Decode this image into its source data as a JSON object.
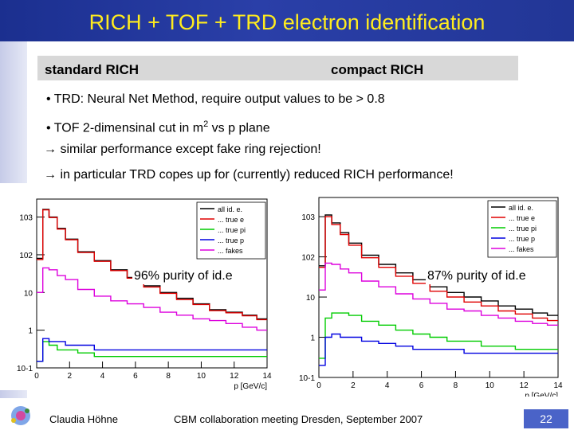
{
  "slide": {
    "title": "RICH + TOF + TRD electron identification",
    "labels": {
      "left": "standard RICH",
      "right": "compact RICH"
    },
    "bullets": [
      "TRD: Neural Net Method, require output values to be > 0.8",
      "TOF 2-dimensinal cut in m",
      "2",
      " vs p plane"
    ],
    "conclusions": [
      "→ similar performance except fake ring rejection!",
      "→ in particular TRD copes up for (currently) reduced RICH performance!"
    ],
    "bullet_symbol": "•"
  },
  "footer": {
    "author": "Claudia Höhne",
    "meeting": "CBM collaboration meeting Dresden, September 2007",
    "page": "22"
  },
  "colors": {
    "title_text": "#ffec1e",
    "title_bg": "#2236a0",
    "all": "#000000",
    "true_e": "#e00000",
    "true_pi": "#00cc00",
    "true_p": "#0000e0",
    "fakes": "#dd00dd",
    "page_box": "#4a63c8"
  },
  "chart_data": [
    {
      "type": "line",
      "name": "standard RICH",
      "annotation": "96% purity of id.e",
      "xlabel": "p [GeV/c]",
      "ylabel": "",
      "xlim": [
        0,
        14
      ],
      "ylim": [
        0.1,
        3000
      ],
      "yscale": "log",
      "x_ticks": [
        "0",
        "2",
        "4",
        "6",
        "8",
        "10",
        "12",
        "14"
      ],
      "y_ticks": [
        {
          "v": 0.1,
          "t": "10-1"
        },
        {
          "v": 1,
          "t": "1"
        },
        {
          "v": 10,
          "t": "10"
        },
        {
          "v": 100,
          "t": "102"
        },
        {
          "v": 1000,
          "t": "103"
        }
      ],
      "legend": [
        "all id. e.",
        "... true e",
        "... true pi",
        "... true p",
        "... fakes"
      ],
      "x": [
        0.25,
        0.5,
        1,
        1.5,
        2,
        3,
        4,
        5,
        6,
        7,
        8,
        9,
        10,
        11,
        12,
        13,
        13.75
      ],
      "series": [
        {
          "name": "all id. e.",
          "values": [
            80,
            1600,
            1000,
            500,
            260,
            120,
            70,
            40,
            25,
            15,
            10,
            7,
            5,
            3.5,
            3,
            2.5,
            2
          ]
        },
        {
          "name": "true e",
          "values": [
            75,
            1550,
            970,
            480,
            250,
            115,
            67,
            38,
            24,
            14,
            9.5,
            6.5,
            4.8,
            3.3,
            2.9,
            2.4,
            1.9
          ]
        },
        {
          "name": "true pi",
          "values": [
            0.15,
            0.5,
            0.4,
            0.3,
            0.3,
            0.25,
            0.2,
            0.2,
            0.2,
            0.2,
            0.2,
            0.2,
            0.2,
            0.2,
            0.2,
            0.2,
            0.2
          ]
        },
        {
          "name": "true p",
          "values": [
            0.15,
            0.6,
            0.5,
            0.5,
            0.4,
            0.4,
            0.3,
            0.3,
            0.3,
            0.3,
            0.3,
            0.3,
            0.3,
            0.3,
            0.3,
            0.3,
            0.3
          ]
        },
        {
          "name": "fakes",
          "values": [
            10,
            45,
            40,
            28,
            22,
            12,
            8,
            6,
            5,
            4,
            3,
            2.5,
            2,
            1.8,
            1.5,
            1.2,
            1
          ]
        }
      ]
    },
    {
      "type": "line",
      "name": "compact RICH",
      "annotation": "87% purity of id.e",
      "xlabel": "p [GeV/c]",
      "ylabel": "",
      "xlim": [
        0,
        14
      ],
      "ylim": [
        0.1,
        3000
      ],
      "yscale": "log",
      "x_ticks": [
        "0",
        "2",
        "4",
        "6",
        "8",
        "10",
        "12",
        "14"
      ],
      "y_ticks": [
        {
          "v": 0.1,
          "t": "10-1"
        },
        {
          "v": 1,
          "t": "1"
        },
        {
          "v": 10,
          "t": "10"
        },
        {
          "v": 100,
          "t": "102"
        },
        {
          "v": 1000,
          "t": "103"
        }
      ],
      "legend": [
        "all id. e.",
        "... true e",
        "... true pi",
        "... true p",
        "... fakes"
      ],
      "x": [
        0.25,
        0.5,
        1,
        1.5,
        2,
        3,
        4,
        5,
        6,
        7,
        8,
        9,
        10,
        11,
        12,
        13,
        13.75
      ],
      "series": [
        {
          "name": "all id. e.",
          "values": [
            60,
            1100,
            700,
            400,
            220,
            110,
            65,
            40,
            27,
            18,
            13,
            10,
            8,
            6,
            5,
            4,
            3.5
          ]
        },
        {
          "name": "true e",
          "values": [
            55,
            1000,
            640,
            360,
            195,
            95,
            55,
            33,
            22,
            14,
            10,
            7.5,
            6,
            4.5,
            3.8,
            3,
            2.6
          ]
        },
        {
          "name": "true pi",
          "values": [
            0.3,
            3,
            4,
            4,
            3.5,
            2.5,
            2,
            1.5,
            1.2,
            1,
            0.8,
            0.8,
            0.6,
            0.6,
            0.5,
            0.5,
            0.5
          ]
        },
        {
          "name": "true p",
          "values": [
            0.2,
            1,
            1.2,
            1,
            1,
            0.8,
            0.7,
            0.6,
            0.5,
            0.5,
            0.5,
            0.4,
            0.4,
            0.4,
            0.4,
            0.4,
            0.4
          ]
        },
        {
          "name": "fakes",
          "values": [
            15,
            70,
            65,
            50,
            40,
            25,
            18,
            12,
            9,
            7,
            5,
            4.5,
            3.5,
            3,
            2.5,
            2.2,
            2
          ]
        }
      ]
    }
  ]
}
